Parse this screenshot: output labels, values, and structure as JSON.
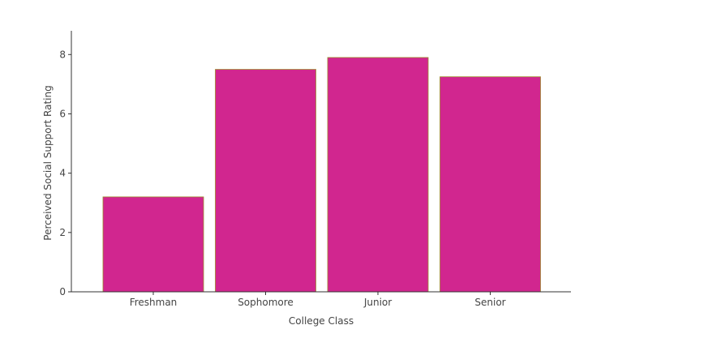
{
  "chart_data": {
    "type": "bar",
    "categories": [
      "Freshman",
      "Sophomore",
      "Junior",
      "Senior"
    ],
    "values": [
      3.2,
      7.5,
      7.9,
      7.25
    ],
    "xlabel": "College Class",
    "ylabel": "Perceived Social Support Rating",
    "ylim": [
      0,
      8.8
    ],
    "yticks": [
      0,
      2,
      4,
      6,
      8
    ],
    "grid": false,
    "colors": {
      "bar_fill": "#d1268f",
      "bar_edge": "#9c8a2a"
    }
  }
}
